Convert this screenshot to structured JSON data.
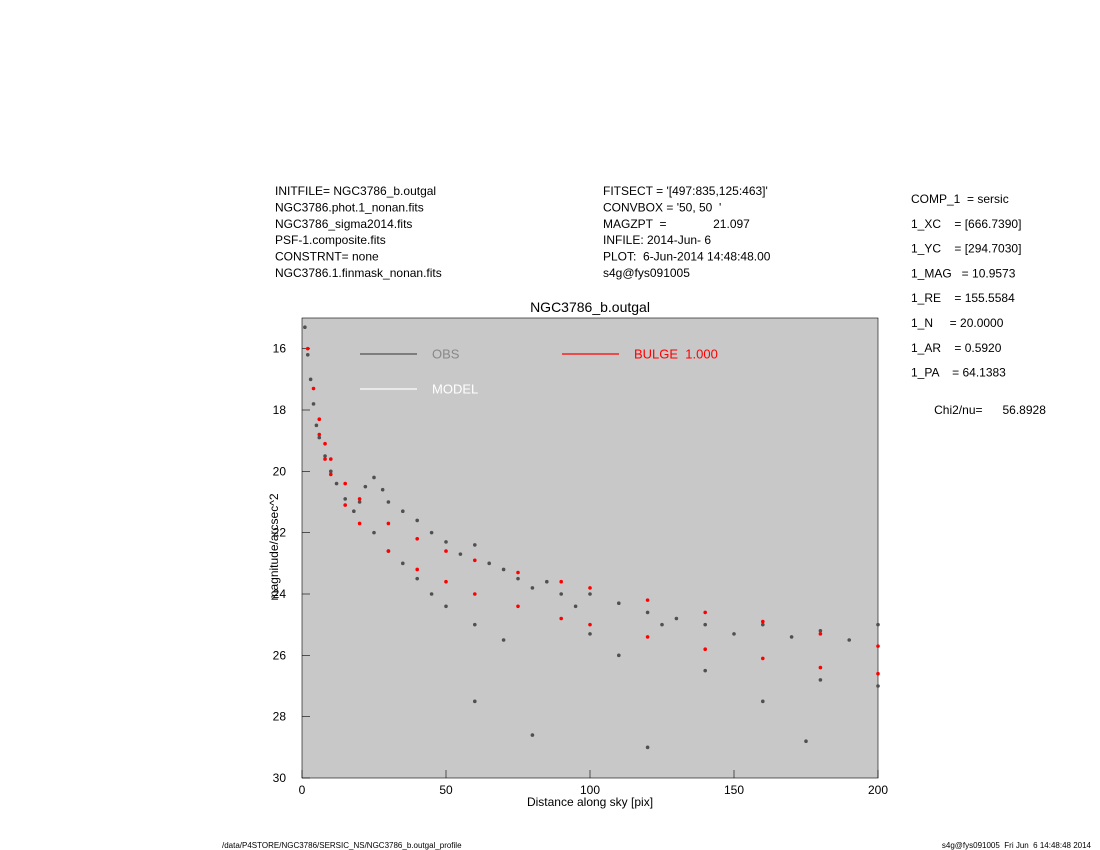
{
  "chart_data": {
    "type": "scatter",
    "title": "NGC3786_b.outgal",
    "xlabel": "Distance along sky [pix]",
    "ylabel": "magnitude/arcsec^2",
    "xlim": [
      0,
      200
    ],
    "xticks": [
      0,
      50,
      100,
      150,
      200
    ],
    "ylim": [
      30,
      15
    ],
    "yticks": [
      16,
      18,
      20,
      22,
      24,
      26,
      28,
      30
    ],
    "background": "#c8c8c8",
    "series": [
      {
        "name": "OBS",
        "color": "#505050",
        "x": [
          1,
          2,
          3,
          4,
          5,
          6,
          8,
          10,
          12,
          15,
          18,
          20,
          22,
          25,
          25,
          28,
          30,
          30,
          35,
          35,
          40,
          40,
          45,
          45,
          50,
          50,
          55,
          60,
          60,
          65,
          70,
          70,
          75,
          80,
          85,
          90,
          95,
          100,
          100,
          110,
          110,
          120,
          125,
          130,
          140,
          140,
          150,
          160,
          160,
          170,
          180,
          180,
          190,
          200,
          200,
          60,
          80,
          120,
          175
        ],
        "values": [
          15.3,
          16.2,
          17.0,
          17.8,
          18.5,
          18.9,
          19.5,
          20.0,
          20.4,
          20.9,
          21.3,
          21.0,
          20.5,
          20.2,
          22.0,
          20.6,
          21.0,
          22.6,
          21.3,
          23.0,
          21.6,
          23.5,
          22.0,
          24.0,
          22.3,
          24.4,
          22.7,
          22.4,
          25.0,
          23.0,
          23.2,
          25.5,
          23.5,
          23.8,
          23.6,
          24.0,
          24.4,
          24.0,
          25.3,
          24.3,
          26.0,
          24.6,
          25.0,
          24.8,
          25.0,
          26.5,
          25.3,
          25.0,
          27.5,
          25.4,
          25.2,
          26.8,
          25.5,
          25.0,
          27.0,
          27.5,
          28.6,
          29.0,
          28.8
        ]
      },
      {
        "name": "MODEL",
        "color": "#ffffff",
        "x": [],
        "values": []
      },
      {
        "name": "BULGE  1.000",
        "color": "#ff0000",
        "x": [
          2,
          4,
          6,
          8,
          10,
          15,
          20,
          30,
          40,
          50,
          60,
          75,
          90,
          100,
          120,
          140,
          160,
          180,
          200,
          6,
          8,
          10,
          15,
          20,
          30,
          40,
          50,
          60,
          75,
          90,
          100,
          120,
          140,
          160,
          180,
          200
        ],
        "values": [
          16.0,
          17.3,
          18.3,
          19.1,
          19.6,
          20.4,
          20.9,
          21.7,
          22.2,
          22.6,
          22.9,
          23.3,
          23.6,
          23.8,
          24.2,
          24.6,
          24.9,
          25.3,
          25.7,
          18.8,
          19.6,
          20.1,
          21.1,
          21.7,
          22.6,
          23.2,
          23.6,
          24.0,
          24.4,
          24.8,
          25.0,
          25.4,
          25.8,
          26.1,
          26.4,
          26.6
        ]
      }
    ]
  },
  "header_left": [
    "INITFILE= NGC3786_b.outgal",
    "NGC3786.phot.1_nonan.fits",
    "NGC3786_sigma2014.fits",
    "PSF-1.composite.fits",
    "CONSTRNT= none",
    "NGC3786.1.finmask_nonan.fits"
  ],
  "header_middle": [
    "FITSECT = '[497:835,125:463]'",
    "CONVBOX = '50, 50  '",
    "MAGZPT  =              21.097",
    "INFILE: 2014-Jun- 6",
    "PLOT:  6-Jun-2014 14:48:48.00",
    "s4g@fys091005"
  ],
  "parameters": [
    "COMP_1  = sersic",
    "1_XC    = [666.7390]",
    "1_YC    = [294.7030]",
    "1_MAG   = 10.9573",
    "1_RE    = 155.5584",
    "1_N     = 20.0000",
    "1_AR    = 0.5920",
    "1_PA    = 64.1383"
  ],
  "chi2": "Chi2/nu=      56.8928",
  "footer_left": "/data/P4STORE/NGC3786/SERSIC_NS/NGC3786_b.outgal_profile",
  "footer_right": "s4g@fys091005  Fri Jun  6 14:48:48 2014"
}
